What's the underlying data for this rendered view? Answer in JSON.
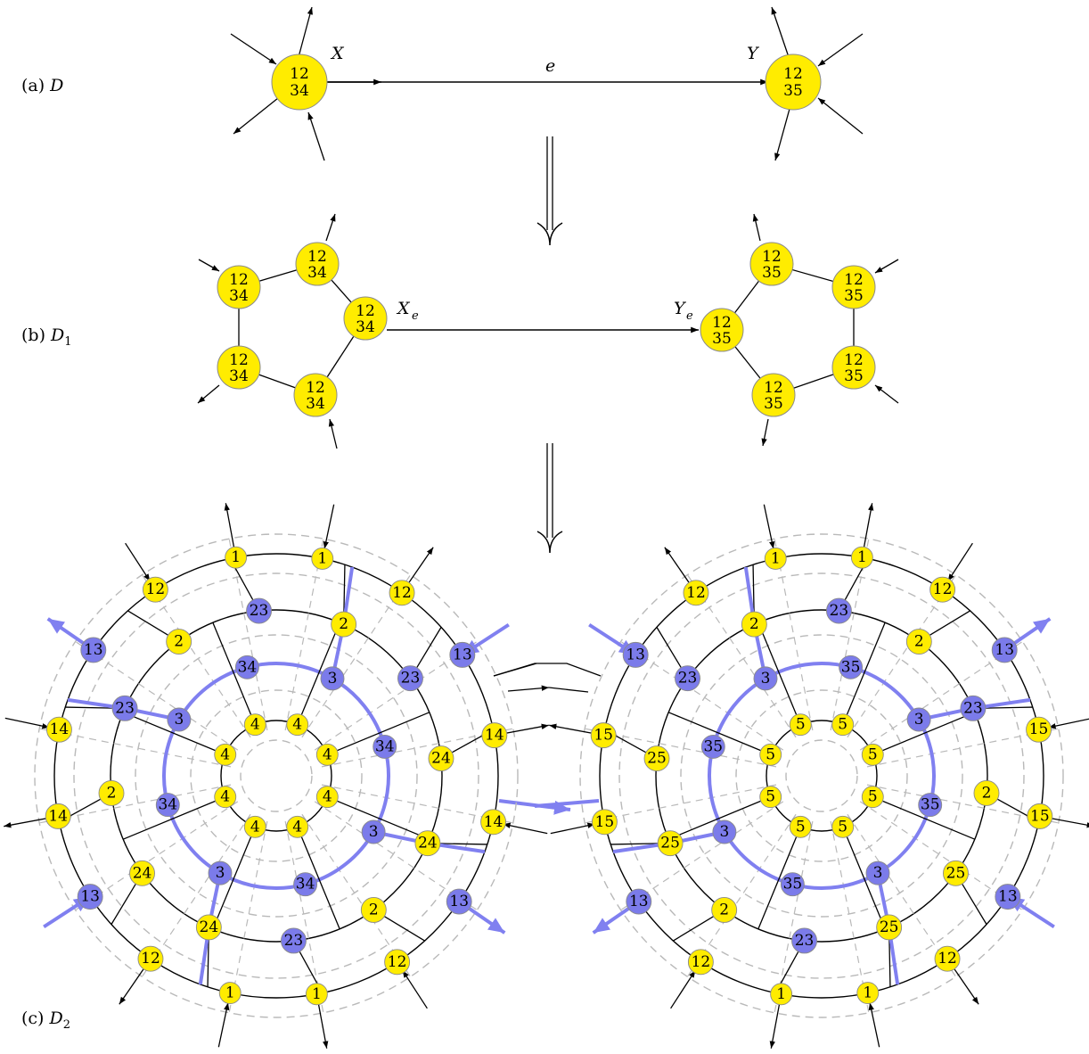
{
  "colors": {
    "yellow": "#ffec00",
    "blue": "#7b7bea",
    "blue_path": "#8080f0",
    "ring_gray": "#b9b9b9",
    "node_border": "#8a8a8a"
  },
  "panels": {
    "a": {
      "label": "(a)",
      "symbol": "D"
    },
    "b": {
      "label": "(b)",
      "symbol": "D",
      "subscript": "1"
    },
    "c": {
      "label": "(c)",
      "symbol": "D",
      "subscript": "2"
    }
  },
  "panel_a": {
    "vertex_x": {
      "name": "X",
      "top": "12",
      "bottom": "34"
    },
    "vertex_y": {
      "name": "Y",
      "top": "12",
      "bottom": "35"
    },
    "edge_label": "e"
  },
  "panel_b": {
    "vertex_x_name": "X",
    "vertex_x_sub": "e",
    "vertex_y_name": "Y",
    "vertex_y_sub": "e",
    "left_top": "12",
    "left_bottom": "34",
    "right_top": "12",
    "right_bottom": "35"
  },
  "panel_c": {
    "left_labels": {
      "r1": [
        "1",
        "12",
        "13",
        "14",
        "14",
        "13",
        "12",
        "1",
        "1",
        "12",
        "13",
        "14",
        "14",
        "13",
        "12",
        "1"
      ],
      "r2": [
        "2",
        "23",
        "24",
        "24",
        "2",
        "23",
        "24",
        "24",
        "2",
        "23",
        "2",
        "23"
      ],
      "r3": [
        "3",
        "34",
        "3",
        "34",
        "3",
        "34",
        "3",
        "34"
      ],
      "r4": [
        "4",
        "4",
        "4",
        "4",
        "4",
        "4",
        "4",
        "4"
      ]
    },
    "right_labels": {
      "r1": [
        "1",
        "12",
        "13",
        "15",
        "15",
        "13",
        "12",
        "1",
        "1",
        "12",
        "13",
        "15",
        "15",
        "13",
        "12",
        "1"
      ],
      "r2": [
        "2",
        "23",
        "25",
        "25",
        "2",
        "23",
        "25",
        "25",
        "2",
        "23",
        "2",
        "23"
      ],
      "r3": [
        "3",
        "35",
        "3",
        "35",
        "3",
        "35",
        "3",
        "35"
      ],
      "r4": [
        "5",
        "5",
        "5",
        "5",
        "5",
        "5",
        "5",
        "5"
      ]
    }
  }
}
